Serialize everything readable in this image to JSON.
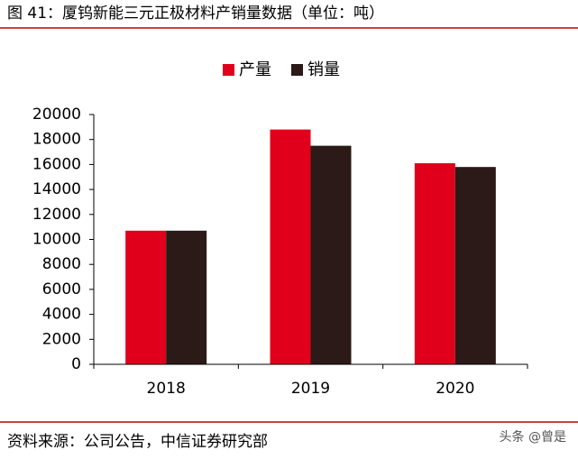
{
  "header": {
    "title": "图 41：厦钨新能三元正极材料产销量数据（单位：吨）"
  },
  "chart_data": {
    "type": "bar",
    "categories": [
      "2018",
      "2019",
      "2020"
    ],
    "series": [
      {
        "name": "产量",
        "color": "#e0001b",
        "values": [
          10700,
          18800,
          16100
        ]
      },
      {
        "name": "销量",
        "color": "#2b1a17",
        "values": [
          10700,
          17500,
          15800
        ]
      }
    ],
    "ylim": [
      0,
      20000
    ],
    "yticks": [
      0,
      2000,
      4000,
      6000,
      8000,
      10000,
      12000,
      14000,
      16000,
      18000,
      20000
    ],
    "legend": "top"
  },
  "footer": {
    "source": "资料来源：公司公告，中信证券研究部",
    "watermark": "头条 @曾是"
  }
}
